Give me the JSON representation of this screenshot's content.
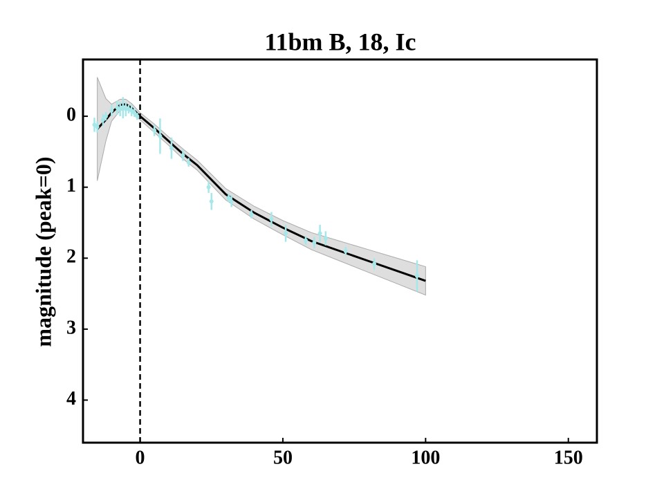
{
  "chart_data": {
    "type": "line",
    "title": "11bm B, 18, Ic",
    "y_label": "magnitude (peak=0)",
    "xlim": [
      -20,
      160
    ],
    "xticks": [
      0,
      50,
      100,
      150
    ],
    "ylim": [
      -0.8,
      4.6
    ],
    "yticks": [
      0,
      1,
      2,
      3,
      4
    ],
    "y_inverted": true,
    "vline": 0,
    "model": {
      "color": "#000000",
      "x": [
        -15,
        -12,
        -10,
        -7,
        -5,
        -3,
        0,
        5,
        10,
        15,
        20,
        30,
        40,
        50,
        60,
        70,
        80,
        90,
        100
      ],
      "values": [
        0.18,
        0.05,
        -0.05,
        -0.16,
        -0.17,
        -0.12,
        0,
        0.17,
        0.35,
        0.53,
        0.69,
        1.1,
        1.36,
        1.57,
        1.76,
        1.9,
        2.04,
        2.18,
        2.32
      ]
    },
    "band": {
      "color": "#c8c8c8",
      "lower": [
        -0.55,
        -0.25,
        -0.17,
        -0.24,
        -0.24,
        -0.18,
        -0.05,
        0.11,
        0.29,
        0.46,
        0.62,
        1.02,
        1.27,
        1.47,
        1.64,
        1.76,
        1.88,
        2.0,
        2.12
      ],
      "upper": [
        0.91,
        0.35,
        0.07,
        -0.08,
        -0.1,
        -0.06,
        0.05,
        0.23,
        0.41,
        0.6,
        0.76,
        1.18,
        1.45,
        1.67,
        1.88,
        2.04,
        2.2,
        2.36,
        2.52
      ]
    },
    "points": {
      "color": "#a6e8ea",
      "x": [
        -16,
        -15,
        -13,
        -12,
        -10,
        -8,
        -7,
        -6,
        -5,
        -4,
        -3,
        -2,
        -1,
        5,
        7,
        11,
        15,
        17,
        24,
        25,
        31,
        32,
        39,
        46,
        51,
        58,
        61,
        63,
        65,
        72,
        82,
        97
      ],
      "values": [
        0.12,
        0.15,
        0.05,
        0.0,
        -0.08,
        -0.12,
        -0.1,
        -0.12,
        -0.1,
        -0.1,
        -0.08,
        -0.05,
        0.0,
        0.2,
        0.28,
        0.45,
        0.55,
        0.65,
        1.0,
        1.2,
        1.15,
        1.2,
        1.38,
        1.45,
        1.65,
        1.75,
        1.78,
        1.65,
        1.72,
        1.9,
        2.08,
        2.25
      ],
      "errors": [
        0.1,
        0.08,
        0.08,
        0.06,
        0.08,
        0.1,
        0.1,
        0.15,
        0.1,
        0.06,
        0.08,
        0.06,
        0.05,
        0.08,
        0.25,
        0.15,
        0.08,
        0.06,
        0.08,
        0.12,
        0.06,
        0.08,
        0.06,
        0.1,
        0.12,
        0.06,
        0.08,
        0.12,
        0.1,
        0.06,
        0.08,
        0.22
      ]
    }
  }
}
